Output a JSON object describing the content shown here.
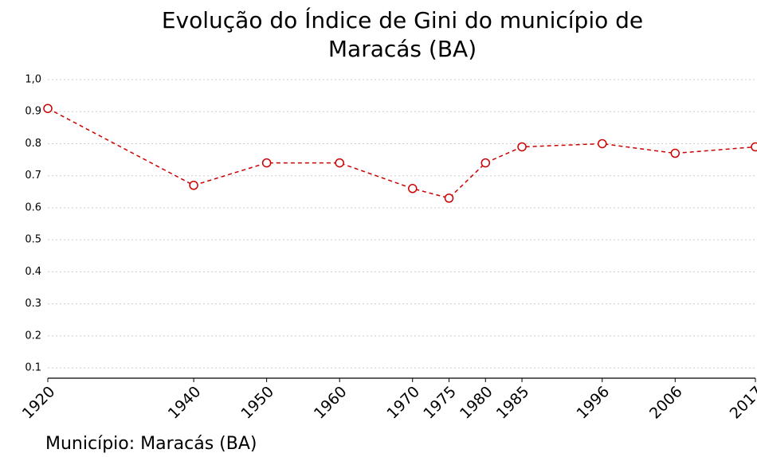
{
  "chart_data": {
    "type": "line",
    "title": [
      "Evolução do Índice de Gini do município de",
      "Maracás (BA)"
    ],
    "footer": "Município: Maracás (BA)",
    "x": [
      1920,
      1940,
      1950,
      1960,
      1970,
      1975,
      1980,
      1985,
      1996,
      2006,
      2017
    ],
    "values": [
      0.91,
      0.67,
      0.74,
      0.74,
      0.66,
      0.63,
      0.74,
      0.79,
      0.8,
      0.77,
      0.79
    ],
    "color": "#cc0000",
    "xlim": [
      1920,
      2017
    ],
    "xticks": [
      1920,
      1940,
      1950,
      1960,
      1970,
      1975,
      1980,
      1985,
      1996,
      2006,
      2017
    ],
    "ylim": [
      0.068,
      1.0
    ],
    "yticks": [
      0.1,
      0.2,
      0.3,
      0.4,
      0.5,
      0.6,
      0.7,
      0.8,
      0.9,
      {
        "value": 1.0,
        "label": "1,0"
      }
    ],
    "grid": true
  }
}
